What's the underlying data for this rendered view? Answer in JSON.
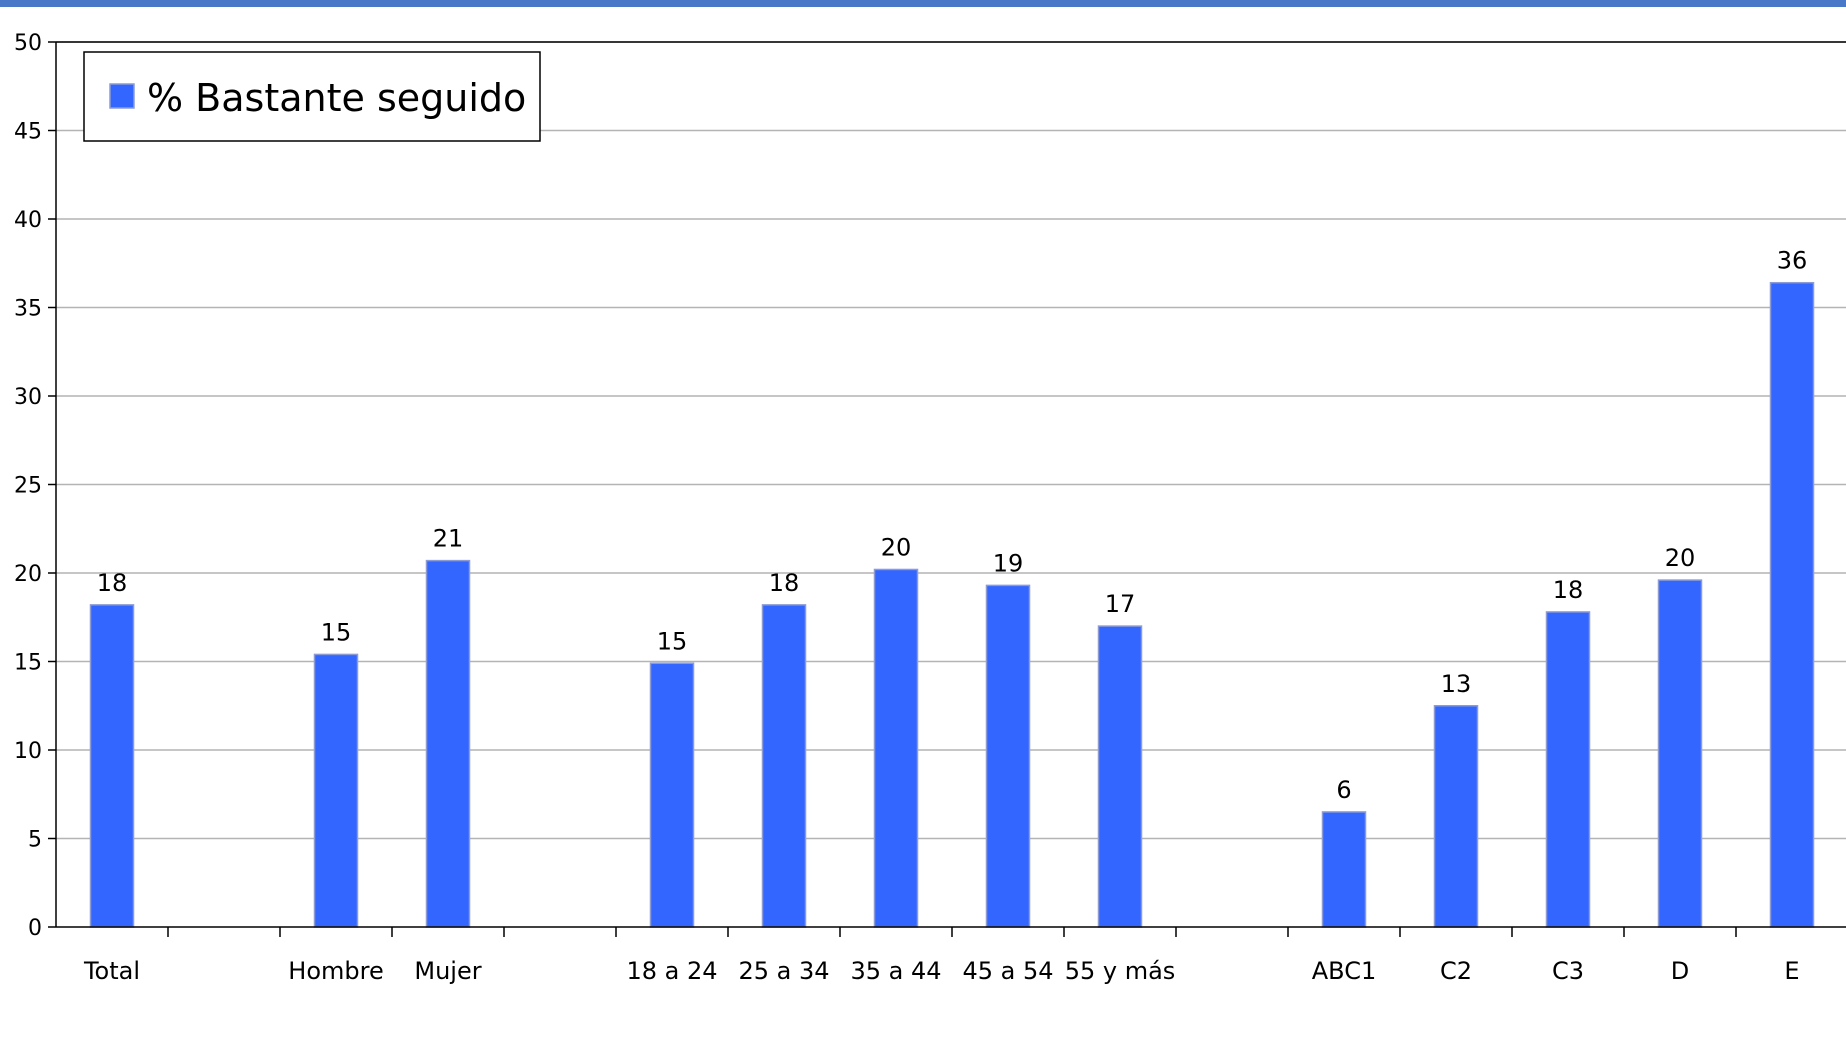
{
  "colors": {
    "bar": "#3366ff",
    "bar_edge": "#8c9bd6",
    "grid": "#b4b4b4",
    "axis": "#000000",
    "top_stripe": "#4a78c8"
  },
  "chart_data": {
    "type": "bar",
    "title": "",
    "xlabel": "",
    "ylabel": "",
    "ylim": [
      0,
      50
    ],
    "y_ticks": [
      0,
      5,
      10,
      15,
      20,
      25,
      30,
      35,
      40,
      45,
      50
    ],
    "grid": true,
    "legend_position": "top-left",
    "categories": [
      "Total",
      "",
      "Hombre",
      "Mujer",
      "",
      "18 a 24",
      "25 a 34",
      "35 a 44",
      "45 a 54",
      "55 y más",
      "",
      "ABC1",
      "C2",
      "C3",
      "D",
      "E"
    ],
    "series": [
      {
        "name": "% Bastante seguido",
        "values": [
          18.2,
          null,
          15.4,
          20.7,
          null,
          14.9,
          18.2,
          20.2,
          19.3,
          17.0,
          null,
          6.5,
          12.5,
          17.8,
          19.6,
          36.4
        ],
        "labels": [
          "18",
          "",
          "15",
          "21",
          "",
          "15",
          "18",
          "20",
          "19",
          "17",
          "",
          "6",
          "13",
          "18",
          "20",
          "36"
        ]
      }
    ]
  }
}
